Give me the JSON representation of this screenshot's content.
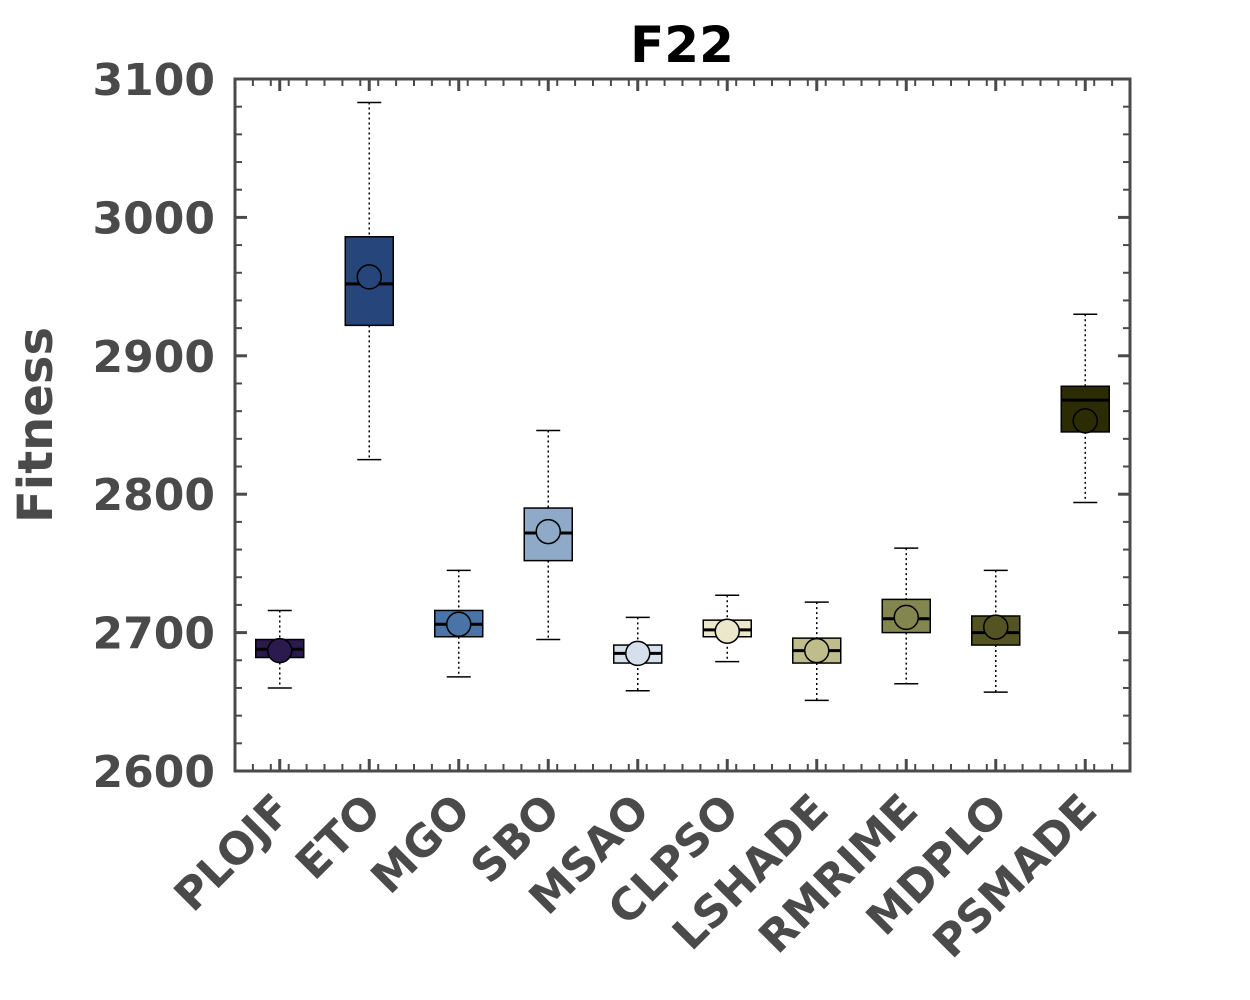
{
  "chart_data": {
    "type": "box",
    "title": "F22",
    "xlabel": "",
    "ylabel": "Fitness",
    "ylim": [
      2600,
      3100
    ],
    "yticks": [
      2600,
      2700,
      2800,
      2900,
      3000,
      3100
    ],
    "grid": false,
    "categories": [
      "PLOJF",
      "ETO",
      "MGO",
      "SBO",
      "MSAO",
      "CLPSO",
      "LSHADE",
      "RMRIME",
      "MDPLO",
      "PSMADE"
    ],
    "boxes": [
      {
        "min": 2660,
        "q1": 2682,
        "median": 2688,
        "q3": 2695,
        "max": 2716,
        "mean": 2687,
        "color": "#2a1a4d"
      },
      {
        "min": 2825,
        "q1": 2922,
        "median": 2952,
        "q3": 2986,
        "max": 3083,
        "mean": 2957,
        "color": "#26457a"
      },
      {
        "min": 2668,
        "q1": 2697,
        "median": 2706,
        "q3": 2716,
        "max": 2745,
        "mean": 2706,
        "color": "#4a74a8"
      },
      {
        "min": 2695,
        "q1": 2752,
        "median": 2772,
        "q3": 2790,
        "max": 2846,
        "mean": 2773,
        "color": "#8eaac8"
      },
      {
        "min": 2658,
        "q1": 2678,
        "median": 2685,
        "q3": 2691,
        "max": 2711,
        "mean": 2685,
        "color": "#d5e0ec"
      },
      {
        "min": 2679,
        "q1": 2697,
        "median": 2702,
        "q3": 2709,
        "max": 2727,
        "mean": 2701,
        "color": "#ebe8cc"
      },
      {
        "min": 2651,
        "q1": 2678,
        "median": 2687,
        "q3": 2696,
        "max": 2722,
        "mean": 2687,
        "color": "#c0bd8c"
      },
      {
        "min": 2663,
        "q1": 2700,
        "median": 2710,
        "q3": 2724,
        "max": 2761,
        "mean": 2711,
        "color": "#848650"
      },
      {
        "min": 2657,
        "q1": 2691,
        "median": 2700,
        "q3": 2712,
        "max": 2745,
        "mean": 2704,
        "color": "#545422"
      },
      {
        "min": 2794,
        "q1": 2845,
        "median": 2868,
        "q3": 2878,
        "max": 2930,
        "mean": 2853,
        "color": "#2c2c04"
      }
    ]
  }
}
